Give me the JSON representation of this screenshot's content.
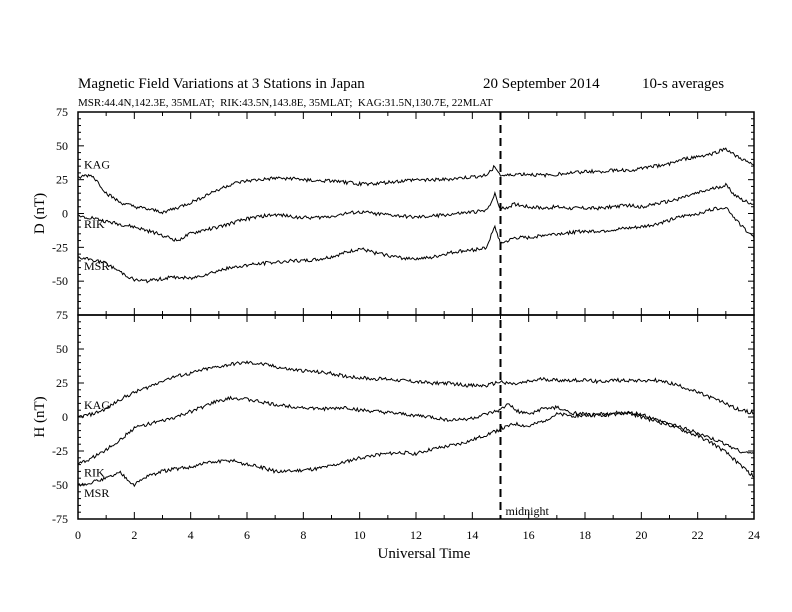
{
  "header": {
    "title": "Magnetic Field Variations at 3 Stations in Japan",
    "date": "20 September 2014",
    "averaging": "10-s averages",
    "stations_line": "MSR:44.4N,142.3E, 35MLAT;  RIK:43.5N,143.8E, 35MLAT;  KAG:31.5N,130.7E, 22MLAT"
  },
  "annotation": {
    "midnight_label": "midnight",
    "midnight_ut": 15
  },
  "chart_data": [
    {
      "type": "line",
      "panel": "D",
      "ylabel": "D (nT)",
      "xlabel": "",
      "xlim": [
        0,
        24
      ],
      "ylim": [
        -75,
        75
      ],
      "yticks": [
        75,
        50,
        25,
        0,
        -25,
        -50,
        -75
      ],
      "series": [
        {
          "name": "KAG",
          "x": [
            0,
            0.25,
            0.5,
            0.75,
            1,
            1.5,
            2,
            2.5,
            3,
            3.5,
            4,
            4.5,
            5,
            5.5,
            6,
            6.5,
            7,
            7.5,
            8,
            8.5,
            9,
            9.5,
            10,
            10.5,
            11,
            11.5,
            12,
            12.5,
            13,
            13.5,
            14,
            14.5,
            14.8,
            15,
            15.3,
            15.5,
            16,
            16.5,
            17,
            17.5,
            18,
            18.5,
            19,
            19.5,
            20,
            20.5,
            21,
            21.5,
            22,
            22.5,
            23,
            23.3,
            23.6,
            24
          ],
          "values": [
            26,
            28,
            28,
            22,
            15,
            8,
            5,
            3,
            1,
            4,
            8,
            13,
            18,
            22,
            24,
            25,
            26,
            26,
            25,
            24,
            24,
            23,
            22,
            22,
            23,
            24,
            25,
            25,
            25,
            26,
            27,
            28,
            35,
            28,
            28,
            29,
            29,
            28,
            29,
            30,
            31,
            31,
            32,
            32,
            33,
            35,
            37,
            40,
            42,
            44,
            48,
            43,
            40,
            35
          ]
        },
        {
          "name": "RIK",
          "x": [
            0,
            0.5,
            1,
            1.5,
            2,
            2.5,
            3,
            3.5,
            4,
            4.5,
            5,
            5.5,
            6,
            6.5,
            7,
            7.5,
            8,
            8.5,
            9,
            9.5,
            10,
            10.5,
            11,
            11.5,
            12,
            12.5,
            13,
            13.5,
            14,
            14.5,
            14.8,
            15,
            15.3,
            15.5,
            16,
            16.5,
            17,
            17.5,
            18,
            18.5,
            19,
            19.5,
            20,
            20.5,
            21,
            21.5,
            22,
            22.5,
            23,
            23.3,
            23.6,
            24
          ],
          "values": [
            -2,
            -3,
            -6,
            -8,
            -10,
            -13,
            -16,
            -20,
            -15,
            -12,
            -10,
            -7,
            -4,
            -2,
            -1,
            -2,
            -3,
            -3,
            -2,
            0,
            1,
            0,
            -1,
            -2,
            -3,
            -2,
            -1,
            0,
            1,
            2,
            14,
            3,
            5,
            7,
            5,
            4,
            5,
            4,
            4,
            4,
            5,
            6,
            5,
            7,
            9,
            12,
            15,
            18,
            21,
            14,
            10,
            7
          ]
        },
        {
          "name": "MSR",
          "x": [
            0,
            0.5,
            1,
            1.5,
            2,
            2.5,
            3,
            3.5,
            4,
            4.5,
            5,
            5.5,
            6,
            6.5,
            7,
            7.5,
            8,
            8.5,
            9,
            9.5,
            10,
            10.5,
            11,
            11.5,
            12,
            12.5,
            13,
            13.5,
            14,
            14.5,
            14.8,
            15,
            15.3,
            15.5,
            16,
            16.5,
            17,
            17.5,
            18,
            18.5,
            19,
            19.5,
            20,
            20.5,
            21,
            21.5,
            22,
            22.5,
            23,
            23.3,
            23.6,
            24
          ],
          "values": [
            -33,
            -34,
            -37,
            -43,
            -49,
            -50,
            -48,
            -47,
            -48,
            -45,
            -42,
            -40,
            -38,
            -37,
            -36,
            -35,
            -35,
            -34,
            -32,
            -29,
            -26,
            -29,
            -31,
            -33,
            -33,
            -33,
            -30,
            -28,
            -27,
            -25,
            -10,
            -22,
            -20,
            -18,
            -18,
            -16,
            -15,
            -14,
            -13,
            -13,
            -12,
            -11,
            -10,
            -8,
            -5,
            -2,
            0,
            3,
            5,
            -3,
            -10,
            -18
          ]
        }
      ]
    },
    {
      "type": "line",
      "panel": "H",
      "ylabel": "H (nT)",
      "xlabel": "Universal Time",
      "xlim": [
        0,
        24
      ],
      "ylim": [
        -75,
        75
      ],
      "xticks": [
        0,
        2,
        4,
        6,
        8,
        10,
        12,
        14,
        16,
        18,
        20,
        22,
        24
      ],
      "yticks": [
        75,
        50,
        25,
        0,
        -25,
        -50,
        -75
      ],
      "series": [
        {
          "name": "KAG",
          "x": [
            0,
            0.5,
            1,
            1.5,
            2,
            2.5,
            3,
            3.5,
            4,
            4.5,
            5,
            5.5,
            6,
            6.5,
            7,
            7.5,
            8,
            8.5,
            9,
            9.5,
            10,
            10.5,
            11,
            11.5,
            12,
            12.5,
            13,
            13.5,
            14,
            14.5,
            15,
            15.5,
            16,
            16.5,
            17,
            17.5,
            18,
            18.5,
            19,
            19.5,
            20,
            20.5,
            21,
            21.5,
            22,
            22.5,
            23,
            23.5,
            24
          ],
          "values": [
            0,
            2,
            6,
            13,
            18,
            22,
            27,
            30,
            32,
            35,
            37,
            39,
            40,
            39,
            37,
            35,
            34,
            33,
            32,
            30,
            29,
            28,
            28,
            27,
            26,
            25,
            25,
            24,
            23,
            23,
            26,
            24,
            26,
            28,
            27,
            27,
            27,
            26,
            27,
            27,
            27,
            27,
            25,
            22,
            18,
            14,
            10,
            5,
            3
          ]
        },
        {
          "name": "RIK",
          "x": [
            0,
            0.5,
            1,
            1.5,
            2,
            2.5,
            3,
            3.5,
            4,
            4.5,
            5,
            5.5,
            6,
            6.5,
            7,
            7.5,
            8,
            8.5,
            9,
            9.5,
            10,
            10.5,
            11,
            11.5,
            12,
            12.5,
            13,
            13.5,
            14,
            14.5,
            15,
            15.3,
            15.5,
            16,
            16.5,
            17,
            17.5,
            18,
            18.5,
            19,
            19.5,
            20,
            20.5,
            21,
            21.5,
            22,
            22.5,
            23,
            23.5,
            24
          ],
          "values": [
            -35,
            -30,
            -24,
            -17,
            -8,
            -5,
            -3,
            0,
            4,
            8,
            12,
            14,
            13,
            11,
            9,
            8,
            7,
            6,
            6,
            7,
            5,
            4,
            3,
            2,
            1,
            0,
            -2,
            -2,
            -1,
            2,
            5,
            10,
            5,
            2,
            6,
            7,
            3,
            2,
            1,
            2,
            3,
            2,
            -2,
            -5,
            -8,
            -12,
            -16,
            -20,
            -25,
            -27
          ]
        },
        {
          "name": "MSR",
          "x": [
            0,
            0.5,
            1,
            1.5,
            2,
            2.5,
            3,
            3.5,
            4,
            4.5,
            5,
            5.5,
            6,
            6.5,
            7,
            7.5,
            8,
            8.5,
            9,
            9.5,
            10,
            10.5,
            11,
            11.5,
            12,
            12.5,
            13,
            13.5,
            14,
            14.5,
            15,
            15.5,
            16,
            16.5,
            17,
            17.5,
            18,
            18.5,
            19,
            19.5,
            20,
            20.5,
            21,
            21.5,
            22,
            22.5,
            23,
            23.5,
            24
          ],
          "values": [
            -50,
            -48,
            -45,
            -41,
            -50,
            -43,
            -40,
            -38,
            -37,
            -34,
            -33,
            -32,
            -35,
            -37,
            -40,
            -40,
            -39,
            -38,
            -36,
            -33,
            -30,
            -28,
            -27,
            -26,
            -27,
            -24,
            -22,
            -20,
            -17,
            -13,
            -9,
            -5,
            -7,
            -3,
            2,
            1,
            1,
            2,
            3,
            3,
            0,
            -3,
            -6,
            -10,
            -14,
            -19,
            -26,
            -35,
            -44
          ]
        }
      ]
    }
  ]
}
